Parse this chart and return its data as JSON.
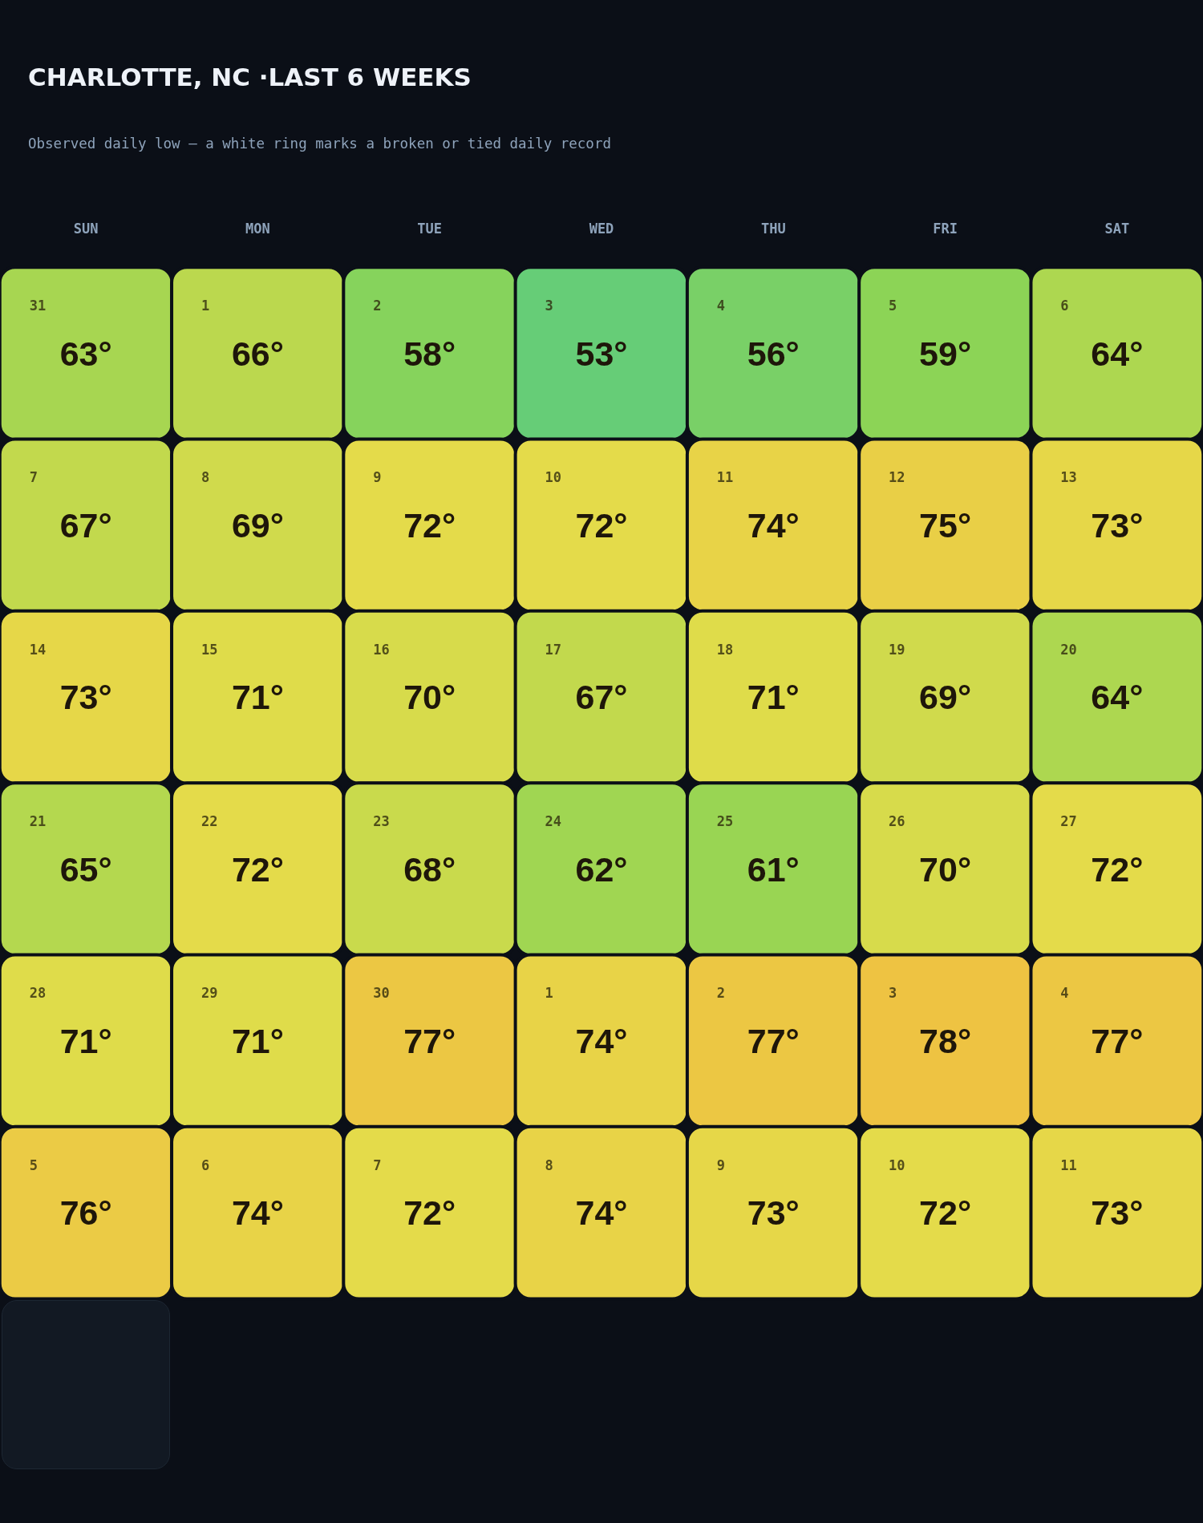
{
  "chart_data": {
    "type": "heatmap",
    "title": "CHARLOTTE, NC ·LAST 6 WEEKS",
    "subtitle": "Observed daily low — a white ring marks a broken or tied daily record",
    "categories": [
      "SUN",
      "MON",
      "TUE",
      "WED",
      "THU",
      "FRI",
      "SAT"
    ],
    "y_categories": [
      null,
      null,
      null,
      null,
      null,
      null
    ],
    "cells": [
      [
        63,
        66,
        58,
        53,
        56,
        59,
        64
      ],
      [
        67,
        69,
        72,
        72,
        74,
        75,
        73
      ],
      [
        73,
        71,
        70,
        67,
        71,
        69,
        64
      ],
      [
        65,
        72,
        68,
        62,
        61,
        70,
        72
      ],
      [
        71,
        71,
        77,
        74,
        77,
        78,
        77
      ],
      [
        76,
        74,
        72,
        74,
        73,
        72,
        73
      ]
    ],
    "cell_labels": [
      [
        "63°",
        "66°",
        "58°",
        "53°",
        "56°",
        "59°",
        "64°"
      ],
      [
        "67°",
        "69°",
        "72°",
        "72°",
        "74°",
        "75°",
        "73°"
      ],
      [
        "73°",
        "71°",
        "70°",
        "67°",
        "71°",
        "69°",
        "64°"
      ],
      [
        "65°",
        "72°",
        "68°",
        "62°",
        "61°",
        "70°",
        "72°"
      ],
      [
        "71°",
        "71°",
        "77°",
        "74°",
        "77°",
        "78°",
        "77°"
      ],
      [
        "76°",
        "74°",
        "72°",
        "74°",
        "73°",
        "72°",
        "73°"
      ]
    ],
    "annotations": [
      "31",
      "1",
      "2",
      "3",
      "4",
      "5",
      "6",
      "7",
      "8",
      "9",
      "10",
      "11",
      "12",
      "13",
      "14",
      "15",
      "16",
      "17",
      "18",
      "19",
      "20",
      "21",
      "22",
      "23",
      "24",
      "25",
      "26",
      "27",
      "28",
      "29",
      "30",
      "1",
      "2",
      "3",
      "4",
      "5",
      "6",
      "7",
      "8",
      "9",
      "10",
      "11"
    ],
    "tick_labels": "x"
  }
}
